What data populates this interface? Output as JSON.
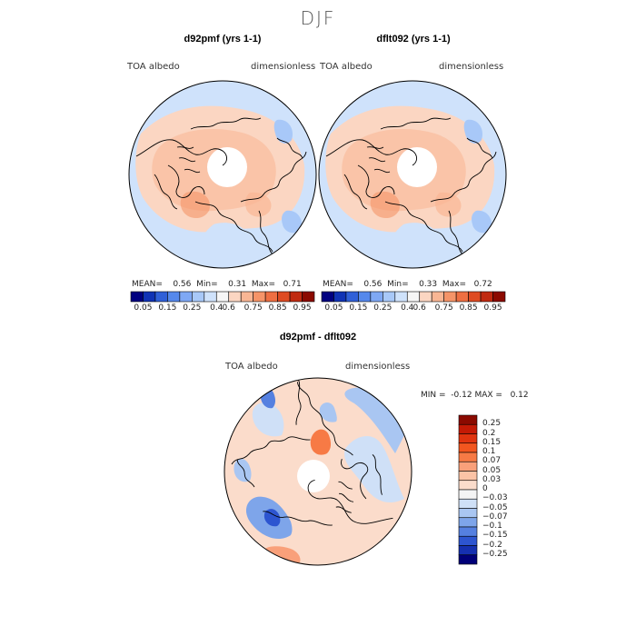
{
  "figure": {
    "season": "DJF"
  },
  "panels": [
    {
      "title": "d92pmf (yrs 1-1)",
      "variable": "TOA albedo",
      "units": "dimensionless",
      "stats": {
        "mean_label": "MEAN=",
        "mean": "0.56",
        "min_label": "Min=",
        "min": "0.31",
        "max_label": "Max=",
        "max": "0.71"
      }
    },
    {
      "title": "dflt092 (yrs 1-1)",
      "variable": "TOA albedo",
      "units": "dimensionless",
      "stats": {
        "mean_label": "MEAN=",
        "mean": "0.56",
        "min_label": "Min=",
        "min": "0.33",
        "max_label": "Max=",
        "max": "0.72"
      }
    },
    {
      "title": "d92pmf - dflt092",
      "variable": "TOA albedo",
      "units": "dimensionless",
      "stats": {
        "min_label": "MIN =",
        "min": "-0.12",
        "max_label": "MAX =",
        "max": "0.12"
      }
    }
  ],
  "colorbar_abs": {
    "ticks": [
      "0.05",
      "0.15",
      "0.25",
      "0.4",
      "0.6",
      "0.75",
      "0.85",
      "0.95"
    ],
    "colors": [
      "#000080",
      "#1033b5",
      "#3060d8",
      "#5588ec",
      "#7fa8f4",
      "#a8c8f8",
      "#cfe2fb",
      "#f6f6f6",
      "#fbd6c2",
      "#f9b694",
      "#f59468",
      "#ee6f42",
      "#de4b22",
      "#c02a10",
      "#8b0a00"
    ]
  },
  "colorbar_diff": {
    "labels": [
      "0.25",
      "0.2",
      "0.15",
      "0.1",
      "0.07",
      "0.05",
      "0.03",
      "0",
      "−0.03",
      "−0.05",
      "−0.07",
      "−0.1",
      "−0.15",
      "−0.2",
      "−0.25"
    ],
    "colors": [
      "#8b0a00",
      "#c41a05",
      "#e0340f",
      "#f2561f",
      "#f77a45",
      "#f9a07a",
      "#fbc3a6",
      "#fbdccb",
      "#f4f4f4",
      "#cfe0f7",
      "#a9c6f2",
      "#7ea5ea",
      "#5580e0",
      "#2d55d0",
      "#1530b0",
      "#000078"
    ]
  },
  "chart_data": [
    {
      "type": "heatmap",
      "title": "d92pmf (yrs 1-1)",
      "projection": "north polar stereographic",
      "field": "TOA albedo",
      "units": "dimensionless",
      "season": "DJF",
      "mean": 0.56,
      "min": 0.31,
      "max": 0.71,
      "contour_levels": [
        0.05,
        0.1,
        0.15,
        0.2,
        0.25,
        0.3,
        0.4,
        0.5,
        0.6,
        0.65,
        0.75,
        0.8,
        0.85,
        0.9,
        0.95
      ]
    },
    {
      "type": "heatmap",
      "title": "dflt092 (yrs 1-1)",
      "projection": "north polar stereographic",
      "field": "TOA albedo",
      "units": "dimensionless",
      "season": "DJF",
      "mean": 0.56,
      "min": 0.33,
      "max": 0.72,
      "contour_levels": [
        0.05,
        0.1,
        0.15,
        0.2,
        0.25,
        0.3,
        0.4,
        0.5,
        0.6,
        0.65,
        0.75,
        0.8,
        0.85,
        0.9,
        0.95
      ]
    },
    {
      "type": "heatmap",
      "title": "d92pmf - dflt092",
      "projection": "north polar stereographic",
      "field": "TOA albedo",
      "units": "dimensionless",
      "season": "DJF",
      "min": -0.12,
      "max": 0.12,
      "contour_levels": [
        -0.25,
        -0.2,
        -0.15,
        -0.1,
        -0.07,
        -0.05,
        -0.03,
        0,
        0.03,
        0.05,
        0.07,
        0.1,
        0.15,
        0.2,
        0.25
      ]
    }
  ]
}
